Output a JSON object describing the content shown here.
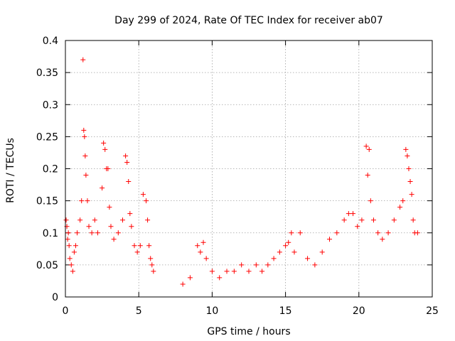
{
  "chart_data": {
    "type": "scatter",
    "title": "Day 299 of 2024, Rate Of TEC Index for receiver ab07",
    "xlabel": "GPS time / hours",
    "ylabel": "ROTI / TECUs",
    "xlim": [
      0,
      25
    ],
    "ylim": [
      0,
      0.4
    ],
    "xticks": [
      "0",
      "5",
      "10",
      "15",
      "20",
      "25"
    ],
    "yticks": [
      "0",
      "0.05",
      "0.1",
      "0.15",
      "0.2",
      "0.25",
      "0.3",
      "0.35",
      "0.4"
    ],
    "grid": true,
    "marker": "+",
    "color": "#ff0000",
    "series": [
      {
        "x": [
          0.05,
          0.1,
          0.15,
          0.2,
          0.25,
          0.3,
          0.4,
          0.5,
          0.6,
          0.7,
          0.8,
          1.0,
          1.1,
          1.2,
          1.25,
          1.3,
          1.35,
          1.4,
          1.5,
          1.6,
          1.8,
          2.0,
          2.2,
          2.5,
          2.6,
          2.7,
          2.8,
          2.9,
          3.0,
          3.1,
          3.3,
          3.6,
          3.9,
          4.1,
          4.2,
          4.3,
          4.4,
          4.5,
          4.7,
          4.9,
          5.1,
          5.3,
          5.5,
          5.6,
          5.7,
          5.8,
          5.9,
          6.0,
          8.0,
          8.5,
          9.0,
          9.2,
          9.4,
          9.6,
          10.0,
          10.5,
          11.0,
          11.5,
          12.0,
          12.5,
          13.0,
          13.4,
          13.8,
          14.2,
          14.6,
          15.0,
          15.2,
          15.4,
          15.6,
          16.0,
          16.5,
          17.0,
          17.5,
          18.0,
          18.5,
          19.0,
          19.3,
          19.6,
          19.9,
          20.2,
          20.5,
          20.6,
          20.7,
          20.8,
          21.0,
          21.3,
          21.6,
          22.0,
          22.4,
          22.8,
          23.0,
          23.2,
          23.3,
          23.4,
          23.5,
          23.6,
          23.7,
          23.8,
          24.0
        ],
        "y": [
          0.12,
          0.11,
          0.09,
          0.1,
          0.08,
          0.06,
          0.05,
          0.04,
          0.07,
          0.08,
          0.1,
          0.12,
          0.15,
          0.37,
          0.26,
          0.25,
          0.22,
          0.19,
          0.15,
          0.11,
          0.1,
          0.12,
          0.1,
          0.17,
          0.24,
          0.23,
          0.2,
          0.2,
          0.14,
          0.11,
          0.09,
          0.1,
          0.12,
          0.22,
          0.21,
          0.18,
          0.13,
          0.11,
          0.08,
          0.07,
          0.08,
          0.16,
          0.15,
          0.12,
          0.08,
          0.06,
          0.05,
          0.04,
          0.02,
          0.03,
          0.08,
          0.07,
          0.085,
          0.06,
          0.04,
          0.03,
          0.04,
          0.04,
          0.05,
          0.04,
          0.05,
          0.04,
          0.05,
          0.06,
          0.07,
          0.08,
          0.085,
          0.1,
          0.07,
          0.1,
          0.06,
          0.05,
          0.07,
          0.09,
          0.1,
          0.12,
          0.13,
          0.13,
          0.11,
          0.12,
          0.235,
          0.19,
          0.23,
          0.15,
          0.12,
          0.1,
          0.09,
          0.1,
          0.12,
          0.14,
          0.15,
          0.23,
          0.22,
          0.2,
          0.18,
          0.16,
          0.12,
          0.1,
          0.1
        ]
      }
    ]
  }
}
